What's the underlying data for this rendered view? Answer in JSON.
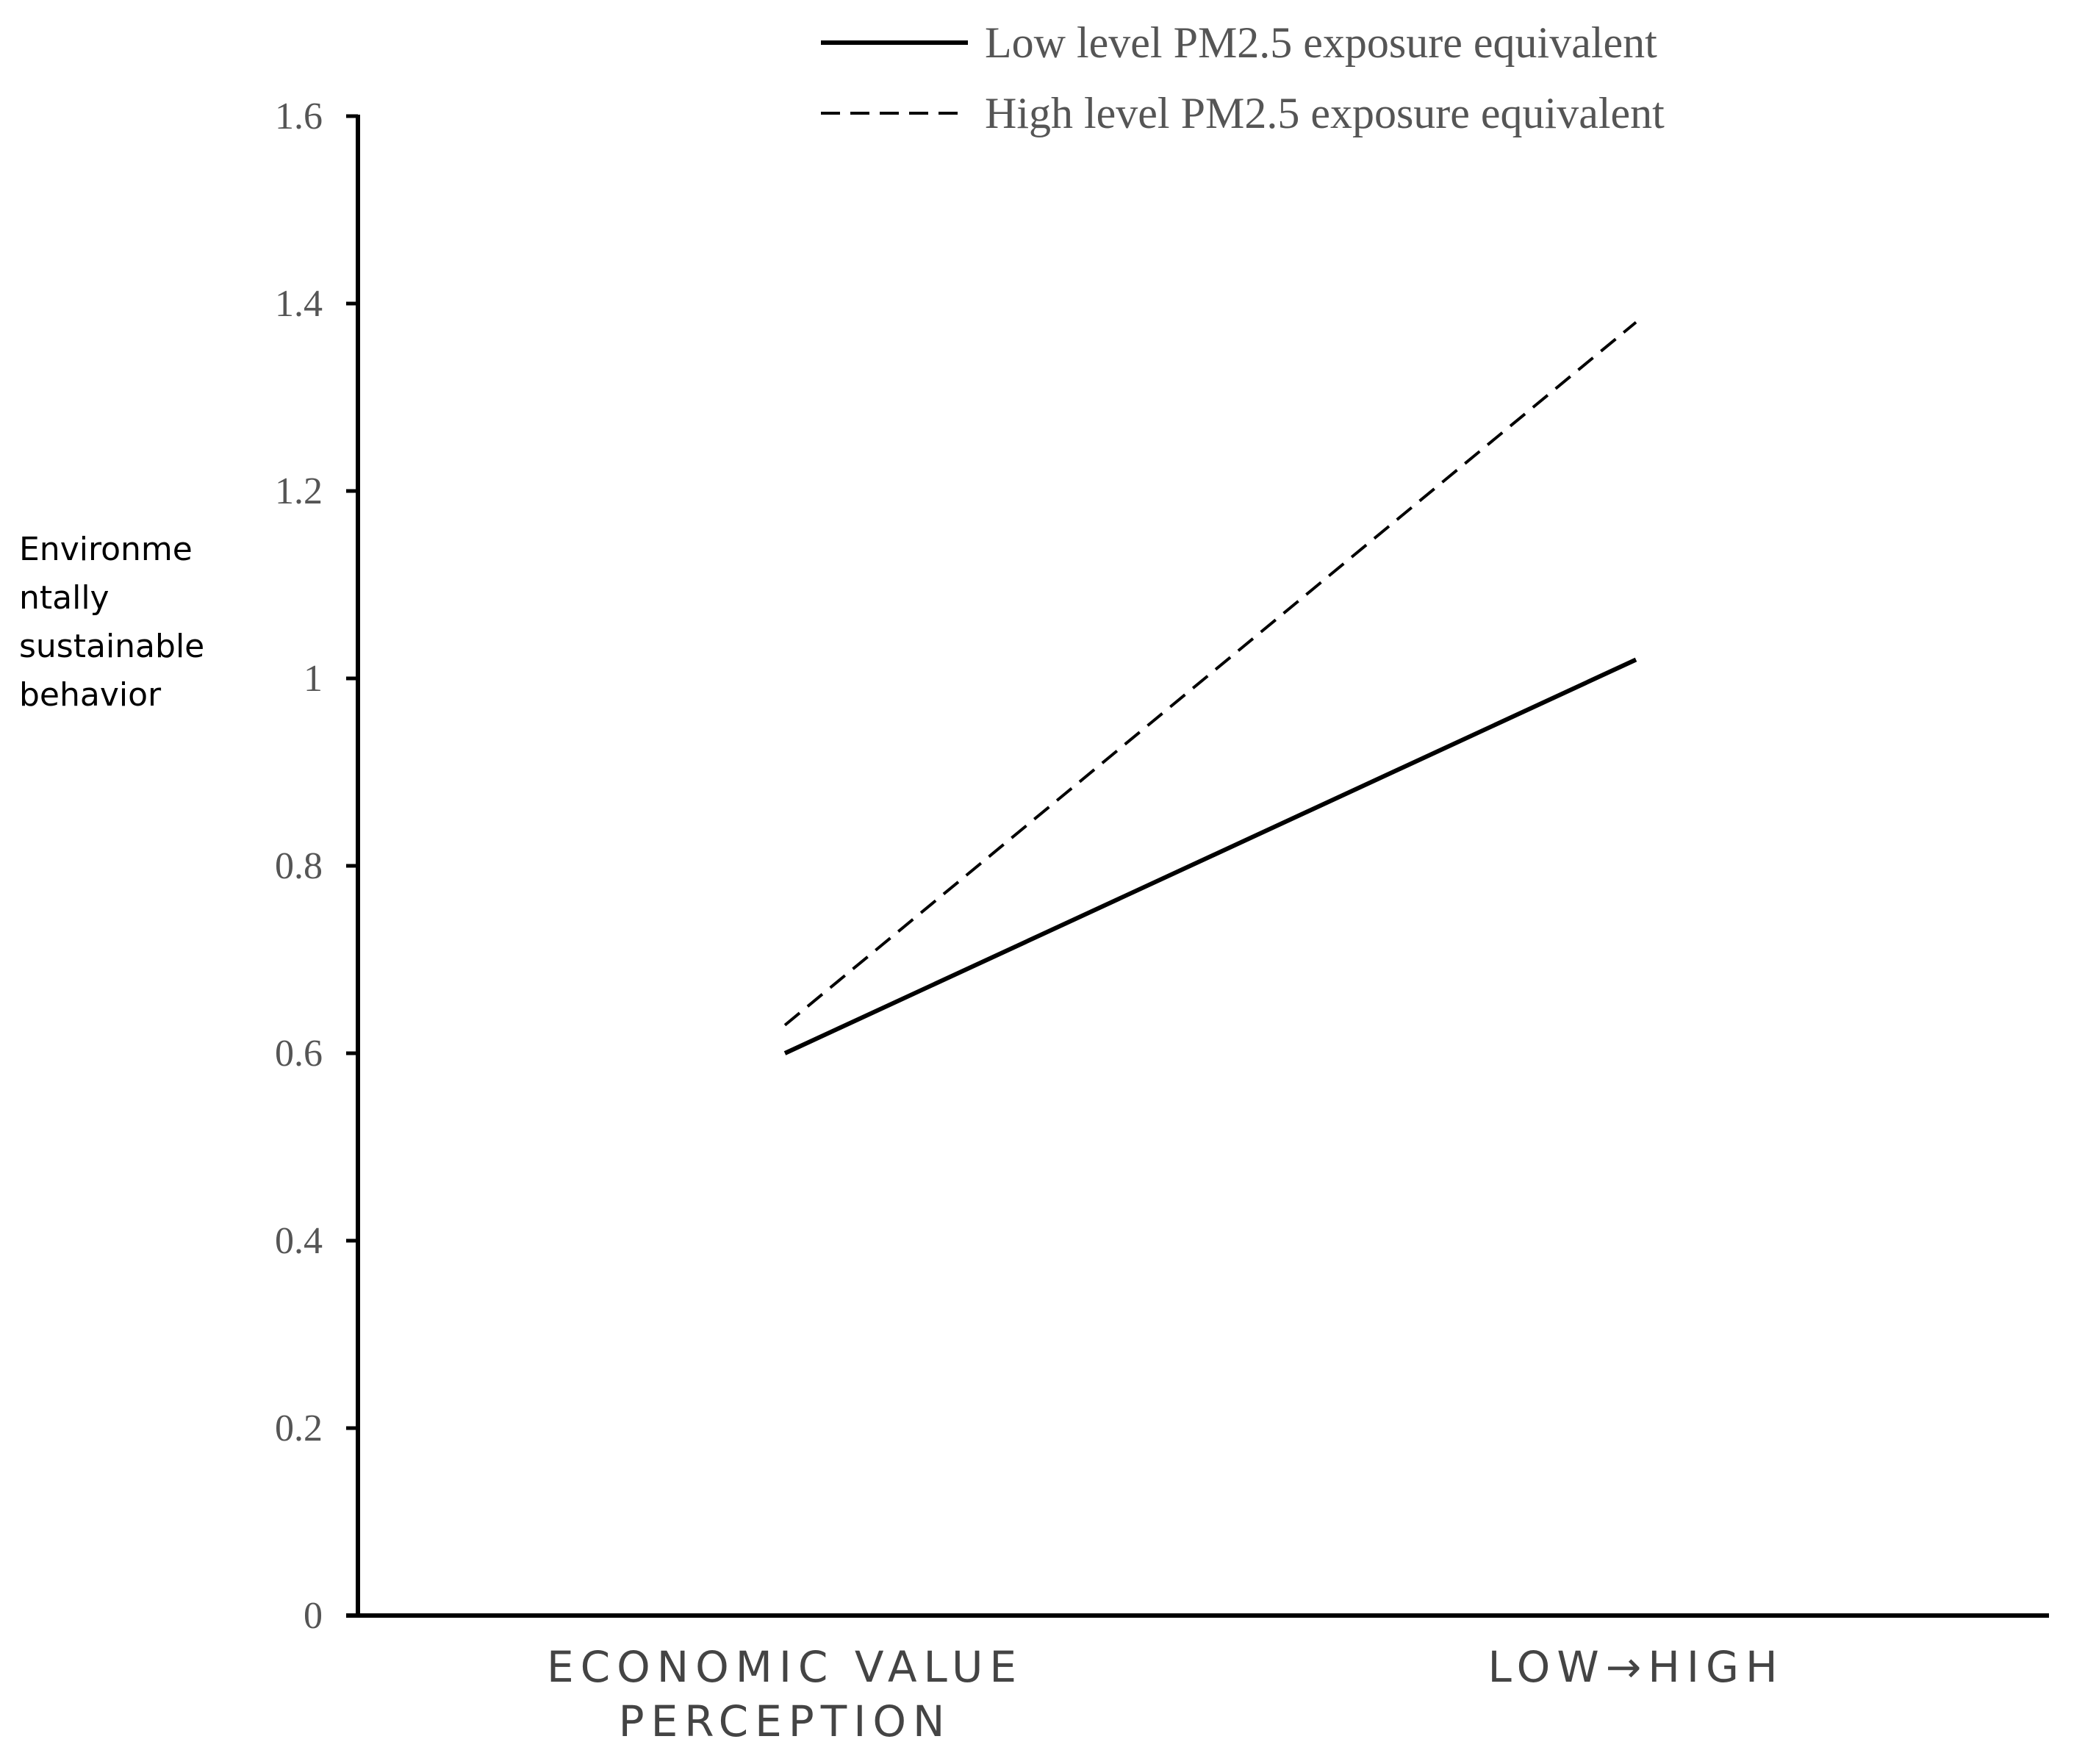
{
  "chart_data": {
    "type": "line",
    "title": "",
    "ylabel_lines": [
      "Environme",
      "ntally",
      "sustainable",
      "behavior"
    ],
    "xlabel": "",
    "categories": [
      [
        "ECONOMIC VALUE",
        "PERCEPTION"
      ],
      [
        "LOW→HIGH"
      ]
    ],
    "ylim": [
      0,
      1.6
    ],
    "yticks": [
      "0",
      "0.2",
      "0.4",
      "0.6",
      "0.8",
      "1",
      "1.2",
      "1.4",
      "1.6"
    ],
    "grid": false,
    "legend_position": "top",
    "series": [
      {
        "name": "Low level PM2.5 exposure equivalent",
        "style": "solid",
        "color": "#000000",
        "values": [
          0.6,
          1.02
        ]
      },
      {
        "name": "High level PM2.5 exposure equivalent",
        "style": "dashed",
        "color": "#000000",
        "values": [
          0.63,
          1.38
        ]
      }
    ]
  }
}
